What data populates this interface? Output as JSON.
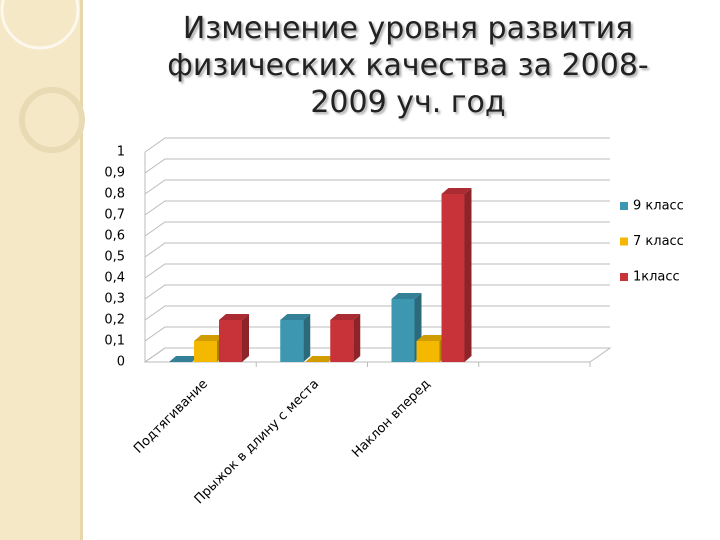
{
  "chart_data": {
    "type": "bar3d",
    "title": "Изменение уровня развития физических качества за 2008-2009 уч. год",
    "categories": [
      "Подтягивание",
      "Прыжок в длину с места",
      "Наклон вперед",
      null
    ],
    "series": [
      {
        "name": "9 класс",
        "color": "#3d97b0",
        "values": [
          0,
          0.2,
          0.3,
          null
        ]
      },
      {
        "name": "7 класс",
        "color": "#f5b800",
        "values": [
          0.1,
          0,
          0.1,
          null
        ]
      },
      {
        "name": "1класс",
        "color": "#c8333a",
        "values": [
          0.2,
          0.2,
          0.8,
          null
        ]
      }
    ],
    "ylim": [
      0,
      1
    ],
    "yticks": [
      0,
      {
        "value": 0.1,
        "label": "0,1"
      },
      {
        "value": 0.2,
        "label": "0,2"
      },
      {
        "value": 0.3,
        "label": "0,3"
      },
      {
        "value": 0.4,
        "label": "0,4"
      },
      {
        "value": 0.5,
        "label": "0,5"
      },
      {
        "value": 0.6,
        "label": "0,6"
      },
      {
        "value": 0.7,
        "label": "0,7"
      },
      {
        "value": 0.8,
        "label": "0,8"
      },
      {
        "value": 0.9,
        "label": "0,9"
      },
      1
    ],
    "grid": true,
    "legend": "right"
  }
}
